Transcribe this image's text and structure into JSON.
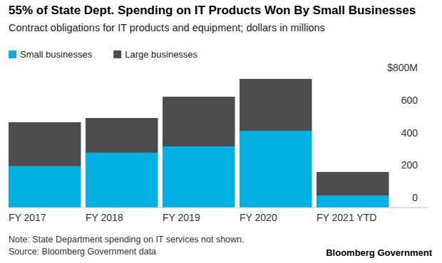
{
  "chart_data": {
    "type": "bar",
    "title": "55% of State Dept. Spending on IT Products Won By Small Businesses",
    "subtitle": "Contract obligations for IT products and equipment; dollars in millions",
    "categories": [
      "FY 2017",
      "FY 2018",
      "FY 2019",
      "FY 2020",
      "FY 2021 YTD"
    ],
    "series": [
      {
        "name": "Small businesses",
        "color": "#00b2e3",
        "values": [
          254,
          337,
          376,
          472,
          74
        ]
      },
      {
        "name": "Large businesses",
        "color": "#4d4d4d",
        "values": [
          271,
          214,
          306,
          319,
          145
        ]
      }
    ],
    "stacked": true,
    "ylim": [
      0,
      800
    ],
    "yticks": [
      0,
      200,
      400,
      600,
      {
        "value": 800,
        "label": "$800M"
      }
    ],
    "grid": false,
    "legend": "top-left",
    "note": "Note: State Department spending on IT services not shown.",
    "source": "Source: Bloomberg Government data",
    "credit": "Bloomberg Government"
  }
}
